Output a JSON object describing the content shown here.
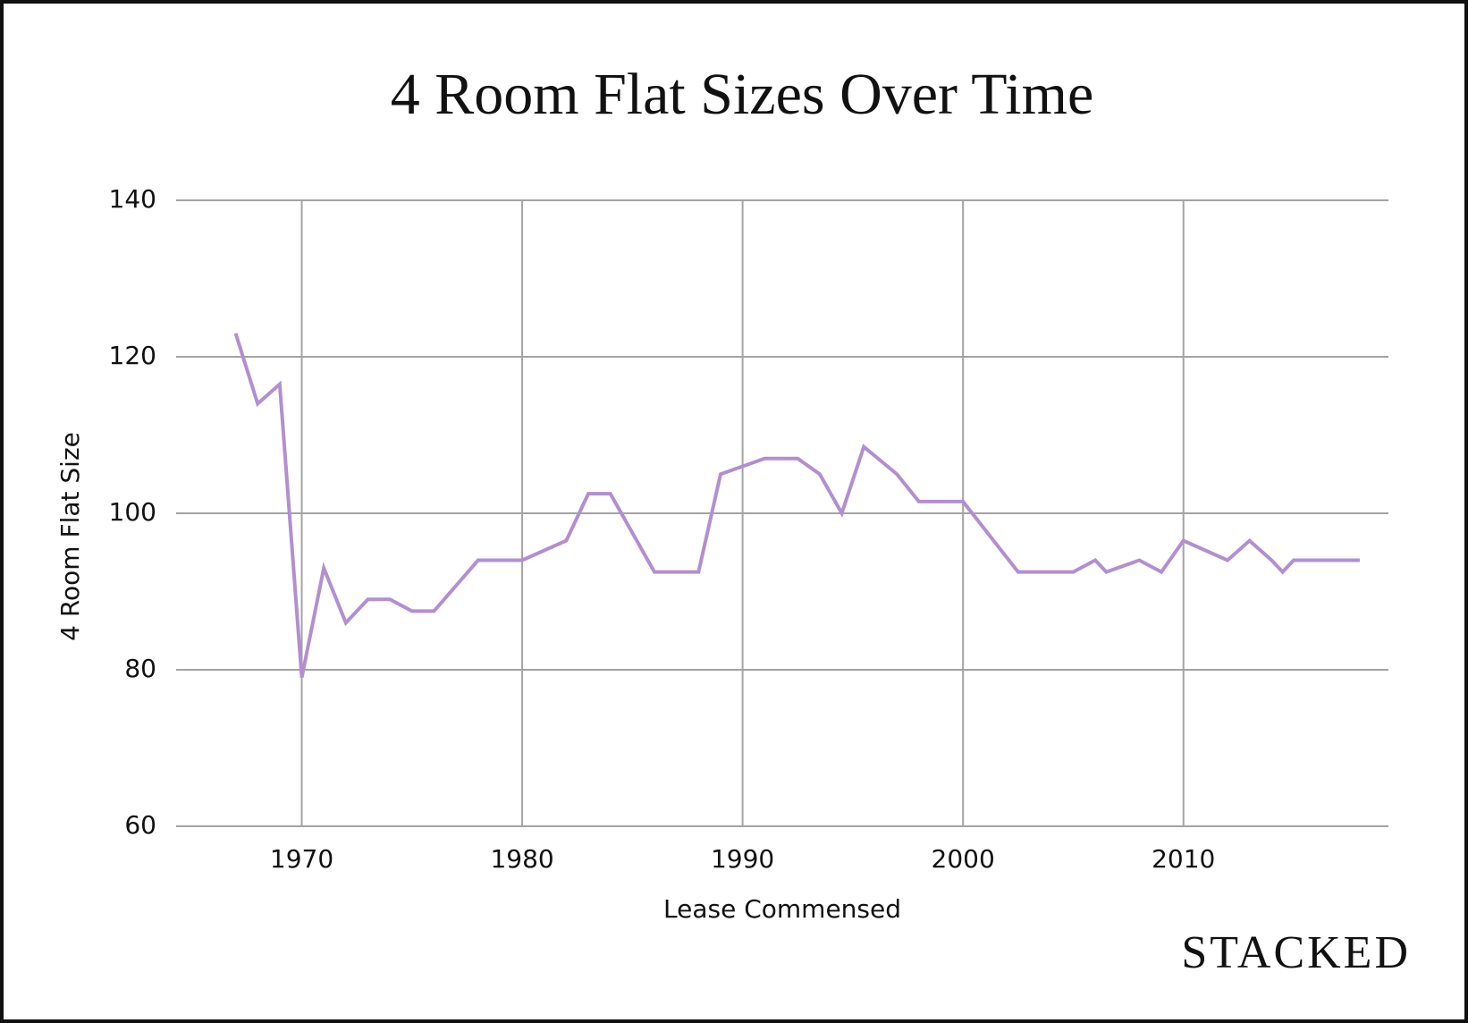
{
  "chart_data": {
    "type": "line",
    "title": "4 Room Flat Sizes Over Time",
    "x_label": "Lease Commensed",
    "y_label": "4 Room Flat Size",
    "brand": "STACKED",
    "x": [
      1967,
      1968,
      1969,
      1970,
      1971,
      1972,
      1973,
      1974,
      1975,
      1976,
      1978,
      1980,
      1982,
      1983,
      1984,
      1986,
      1988,
      1989,
      1991,
      1992.5,
      1993.5,
      1994.5,
      1995.5,
      1997,
      1998,
      2000,
      2002.5,
      2005,
      2006,
      2006.5,
      2008,
      2009,
      2010,
      2012,
      2013,
      2014,
      2014.5,
      2015,
      2018
    ],
    "series": [
      {
        "name": "4 Room Flat Size",
        "color": "#b28fcf",
        "values": [
          123,
          114,
          116.5,
          79,
          93,
          86,
          89,
          89,
          87.5,
          87.5,
          94,
          94,
          96.5,
          102.5,
          102.5,
          92.5,
          92.5,
          105,
          107,
          107,
          105,
          100,
          108.5,
          105,
          101.5,
          101.5,
          92.5,
          92.5,
          94,
          92.5,
          94,
          92.5,
          96.5,
          94,
          96.5,
          94,
          92.5,
          94,
          94
        ]
      }
    ],
    "xlim": [
      1964.3,
      2019.3
    ],
    "xticks": [
      1970,
      1980,
      1990,
      2000,
      2010
    ],
    "ylim": [
      60,
      140
    ],
    "yticks": [
      60,
      80,
      100,
      120,
      140
    ],
    "grid": true
  }
}
